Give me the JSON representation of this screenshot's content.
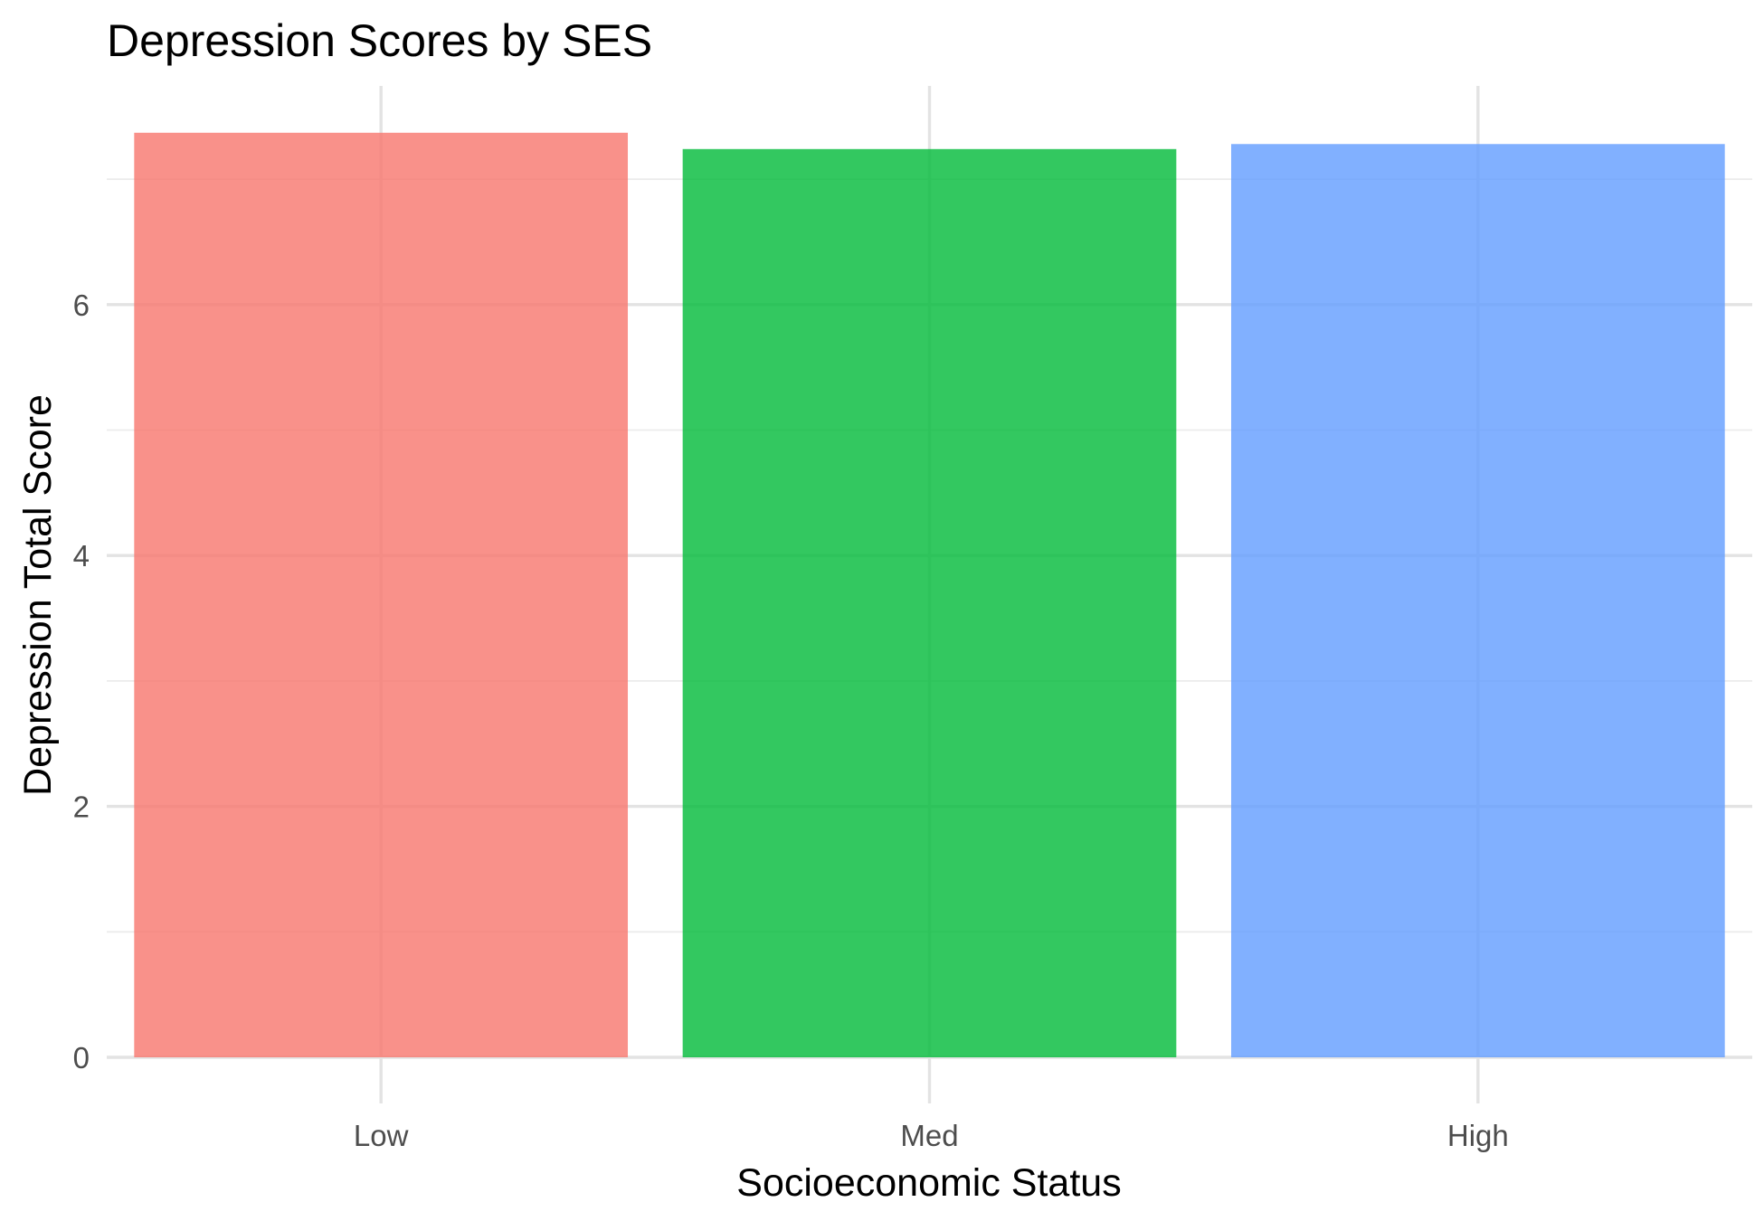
{
  "chart_data": {
    "type": "bar",
    "title": "Depression Scores by SES",
    "xlabel": "Socioeconomic Status",
    "ylabel": "Depression Total Score",
    "categories": [
      "Low",
      "Med",
      "High"
    ],
    "values": [
      7.37,
      7.24,
      7.28
    ],
    "colors": [
      "#F8766D",
      "#00BA38",
      "#619CFF"
    ],
    "ylim": [
      0,
      7.75
    ],
    "yticks": [
      0,
      2,
      4,
      6
    ],
    "ytick_labels": [
      "0",
      "2",
      "4",
      "6"
    ],
    "grid": true,
    "legend": "none"
  }
}
